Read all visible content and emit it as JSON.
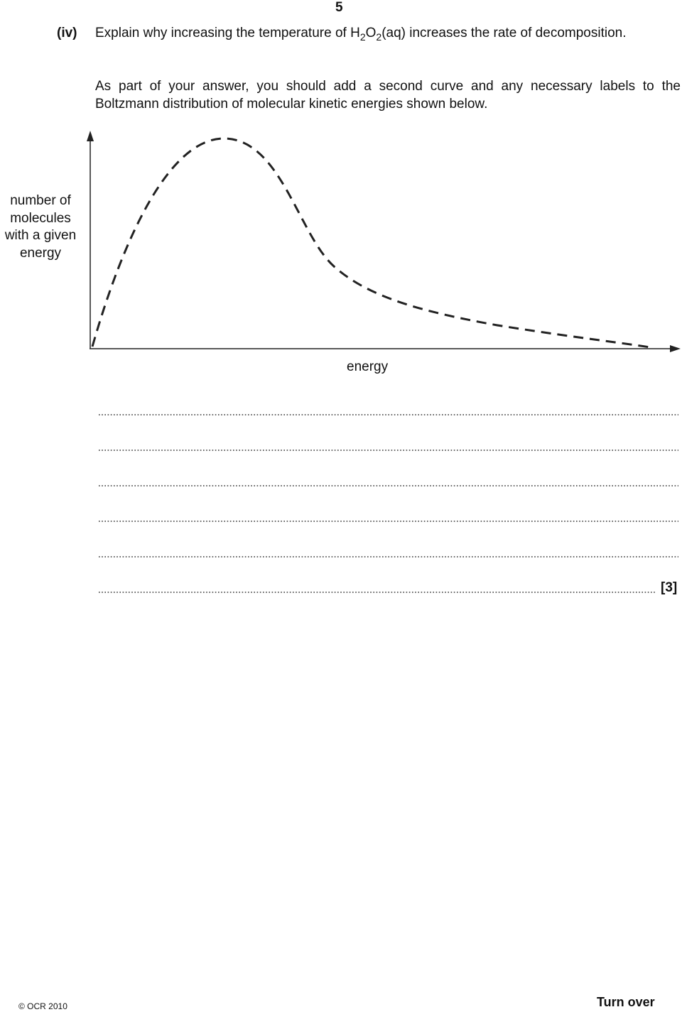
{
  "header": {
    "page_number": "5"
  },
  "question": {
    "label": "(iv)",
    "text_parts": [
      "Explain why increasing the temperature of H",
      "2",
      "O",
      "2",
      "(aq) increases the rate of decomposition."
    ],
    "instruction": "As part of your answer, you should add a second curve and any necessary labels to the Boltzmann distribution of molecular kinetic energies shown below."
  },
  "diagram": {
    "y_label_lines": [
      "number of",
      "molecules",
      "with a given",
      "energy"
    ],
    "x_label": "energy"
  },
  "answer": {
    "marks": "[3]"
  },
  "footer": {
    "copyright": "© OCR 2010",
    "turn_over": "Turn over"
  }
}
